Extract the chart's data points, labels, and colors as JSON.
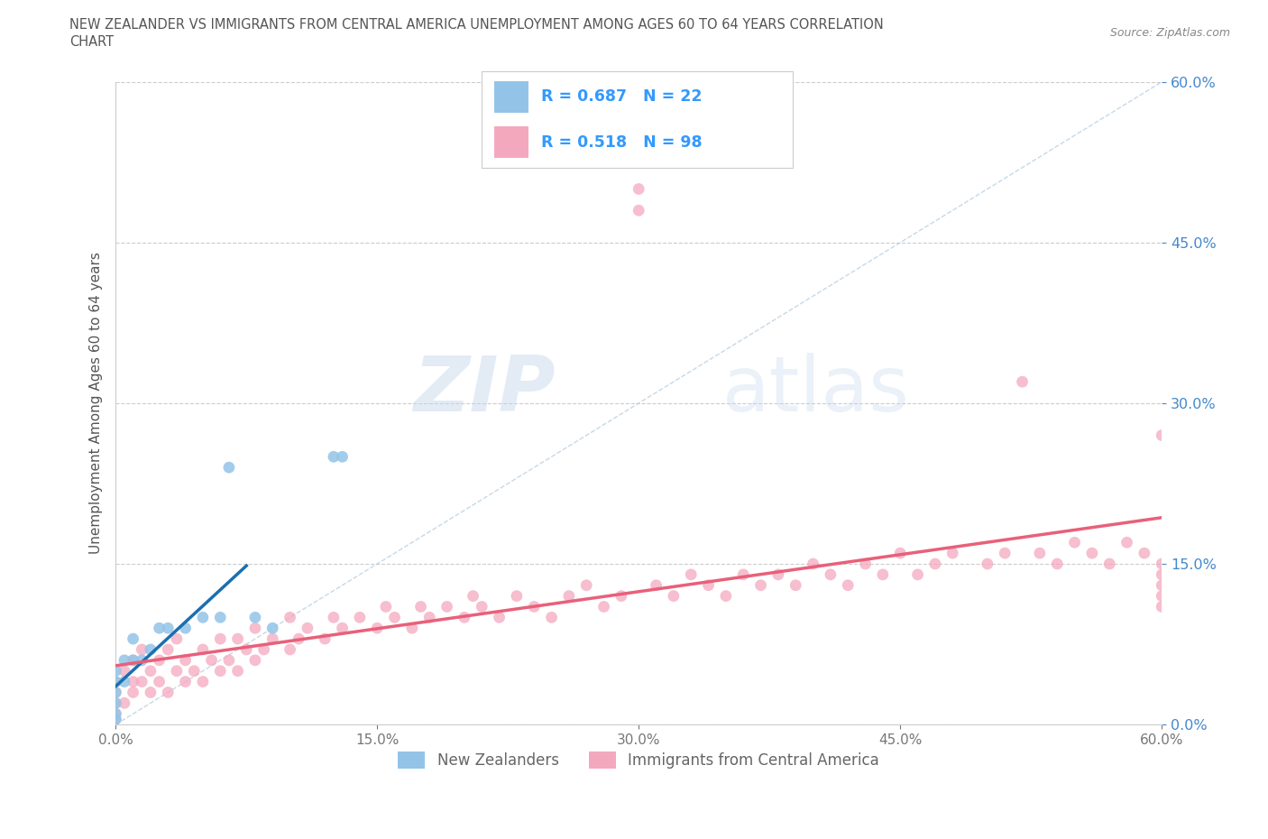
{
  "title_line1": "NEW ZEALANDER VS IMMIGRANTS FROM CENTRAL AMERICA UNEMPLOYMENT AMONG AGES 60 TO 64 YEARS CORRELATION",
  "title_line2": "CHART",
  "source": "Source: ZipAtlas.com",
  "ylabel": "Unemployment Among Ages 60 to 64 years",
  "xlim": [
    0.0,
    0.6
  ],
  "ylim": [
    0.0,
    0.6
  ],
  "xticks": [
    0.0,
    0.15,
    0.3,
    0.45,
    0.6
  ],
  "yticks": [
    0.0,
    0.15,
    0.3,
    0.45,
    0.6
  ],
  "color_nz": "#93c4e8",
  "color_ca": "#f4a8be",
  "color_nz_line": "#1a6faf",
  "color_ca_line": "#e8607a",
  "color_diag": "#b8cfe0",
  "background": "#ffffff",
  "grid_color": "#cccccc",
  "tick_color": "#4488cc",
  "title_color": "#555555",
  "legend_text_color": "#3399ff",
  "watermark_color": "#d8e8f4",
  "nz_x": [
    0.0,
    0.0,
    0.0,
    0.0,
    0.0,
    0.0,
    0.005,
    0.005,
    0.01,
    0.01,
    0.015,
    0.02,
    0.025,
    0.03,
    0.04,
    0.05,
    0.06,
    0.065,
    0.08,
    0.09,
    0.125,
    0.13
  ],
  "nz_y": [
    0.005,
    0.01,
    0.02,
    0.03,
    0.04,
    0.05,
    0.04,
    0.06,
    0.06,
    0.08,
    0.06,
    0.07,
    0.09,
    0.09,
    0.09,
    0.1,
    0.1,
    0.24,
    0.1,
    0.09,
    0.25,
    0.25
  ],
  "ca_x": [
    0.0,
    0.0,
    0.0,
    0.0,
    0.0,
    0.005,
    0.005,
    0.01,
    0.01,
    0.01,
    0.015,
    0.015,
    0.02,
    0.02,
    0.025,
    0.025,
    0.03,
    0.03,
    0.035,
    0.035,
    0.04,
    0.04,
    0.045,
    0.05,
    0.05,
    0.055,
    0.06,
    0.06,
    0.065,
    0.07,
    0.07,
    0.075,
    0.08,
    0.08,
    0.085,
    0.09,
    0.1,
    0.1,
    0.105,
    0.11,
    0.12,
    0.125,
    0.13,
    0.14,
    0.15,
    0.155,
    0.16,
    0.17,
    0.175,
    0.18,
    0.19,
    0.2,
    0.205,
    0.21,
    0.22,
    0.23,
    0.24,
    0.25,
    0.26,
    0.27,
    0.28,
    0.29,
    0.3,
    0.3,
    0.31,
    0.32,
    0.33,
    0.34,
    0.35,
    0.36,
    0.37,
    0.38,
    0.39,
    0.4,
    0.41,
    0.42,
    0.43,
    0.44,
    0.45,
    0.46,
    0.47,
    0.48,
    0.5,
    0.51,
    0.52,
    0.53,
    0.54,
    0.55,
    0.56,
    0.57,
    0.58,
    0.59,
    0.6,
    0.6,
    0.6,
    0.6,
    0.6,
    0.6
  ],
  "ca_y": [
    0.005,
    0.01,
    0.02,
    0.03,
    0.04,
    0.02,
    0.05,
    0.03,
    0.04,
    0.06,
    0.04,
    0.07,
    0.03,
    0.05,
    0.04,
    0.06,
    0.03,
    0.07,
    0.05,
    0.08,
    0.04,
    0.06,
    0.05,
    0.04,
    0.07,
    0.06,
    0.05,
    0.08,
    0.06,
    0.05,
    0.08,
    0.07,
    0.06,
    0.09,
    0.07,
    0.08,
    0.07,
    0.1,
    0.08,
    0.09,
    0.08,
    0.1,
    0.09,
    0.1,
    0.09,
    0.11,
    0.1,
    0.09,
    0.11,
    0.1,
    0.11,
    0.1,
    0.12,
    0.11,
    0.1,
    0.12,
    0.11,
    0.1,
    0.12,
    0.13,
    0.11,
    0.12,
    0.5,
    0.48,
    0.13,
    0.12,
    0.14,
    0.13,
    0.12,
    0.14,
    0.13,
    0.14,
    0.13,
    0.15,
    0.14,
    0.13,
    0.15,
    0.14,
    0.16,
    0.14,
    0.15,
    0.16,
    0.15,
    0.16,
    0.32,
    0.16,
    0.15,
    0.17,
    0.16,
    0.15,
    0.17,
    0.16,
    0.27,
    0.15,
    0.14,
    0.13,
    0.12,
    0.11
  ]
}
